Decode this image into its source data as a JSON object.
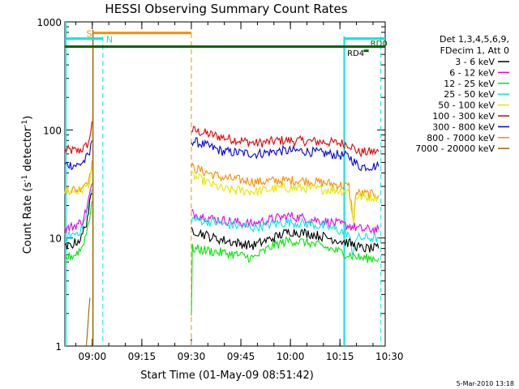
{
  "chart_data": {
    "type": "line",
    "title": "HESSI Observing Summary Count Rates",
    "xlabel": "Start Time (01-May-09 08:51:42)",
    "ylabel_main": "Count Rate (s",
    "ylabel_sup1": "-1",
    "ylabel_mid": " detector",
    "ylabel_sup2": "-1",
    "ylabel_end": ")",
    "y_scale": "log",
    "ylim": [
      1,
      1000
    ],
    "xlim_minutes": [
      0,
      97
    ],
    "x_ticks": [
      {
        "label": "09:00",
        "minute": 8.3
      },
      {
        "label": "09:15",
        "minute": 23.3
      },
      {
        "label": "09:30",
        "minute": 38.3
      },
      {
        "label": "09:45",
        "minute": 53.3
      },
      {
        "label": "10:00",
        "minute": 68.3
      },
      {
        "label": "10:15",
        "minute": 83.3
      },
      {
        "label": "10:30",
        "minute": 98.3
      }
    ],
    "y_ticks": [
      {
        "label": "1",
        "value": 1
      },
      {
        "label": "10",
        "value": 10
      },
      {
        "label": "100",
        "value": 100
      },
      {
        "label": "1000",
        "value": 1000
      }
    ],
    "legend": {
      "header1": "Det 1,3,4,5,6,9,",
      "header2": "FDecim 1, Att 0",
      "entries": [
        {
          "name": "3 - 6 keV",
          "color": "#000000"
        },
        {
          "name": "6 - 12 keV",
          "color": "#e600e6"
        },
        {
          "name": "12 - 25 keV",
          "color": "#00e600"
        },
        {
          "name": "25 - 50 keV",
          "color": "#00e6e6"
        },
        {
          "name": "50 - 100 keV",
          "color": "#e6e600"
        },
        {
          "name": "100 - 300 keV",
          "color": "#e60000"
        },
        {
          "name": "300 - 800 keV",
          "color": "#0000e6"
        },
        {
          "name": "800 - 7000 keV",
          "color": "#ff8c00"
        },
        {
          "name": "7000 - 20000 keV",
          "color": "#996600"
        }
      ]
    },
    "series": [
      {
        "name": "100 - 300 keV",
        "color": "#e60000",
        "segments": [
          [
            [
              0,
              65
            ],
            [
              4,
              64
            ],
            [
              6,
              68
            ],
            [
              7.5,
              80
            ],
            [
              8.2,
              120
            ]
          ],
          [
            [
              38.3,
              100
            ],
            [
              48,
              85
            ],
            [
              58,
              75
            ],
            [
              65,
              80
            ],
            [
              72,
              79
            ],
            [
              80,
              77
            ],
            [
              86,
              74
            ],
            [
              89,
              62
            ],
            [
              95,
              63
            ]
          ]
        ]
      },
      {
        "name": "300 - 800 keV",
        "color": "#0000e6",
        "segments": [
          [
            [
              0,
              48
            ],
            [
              4,
              47
            ],
            [
              6,
              52
            ],
            [
              7.5,
              60
            ],
            [
              8.2,
              80
            ]
          ],
          [
            [
              38.3,
              80
            ],
            [
              48,
              63
            ],
            [
              58,
              60
            ],
            [
              65,
              64
            ],
            [
              72,
              64
            ],
            [
              80,
              60
            ],
            [
              86,
              57
            ],
            [
              89,
              46
            ],
            [
              95,
              46
            ]
          ]
        ]
      },
      {
        "name": "800 - 7000 keV",
        "color": "#ff8c00",
        "segments": [
          [
            [
              0,
              28
            ],
            [
              4,
              28
            ],
            [
              6,
              32
            ],
            [
              7.5,
              36
            ],
            [
              8.2,
              52
            ]
          ],
          [
            [
              38.3,
              45
            ],
            [
              48,
              36
            ],
            [
              58,
              33
            ],
            [
              65,
              34
            ],
            [
              72,
              34
            ],
            [
              80,
              32
            ],
            [
              86,
              30
            ],
            [
              87.5,
              14
            ],
            [
              88,
              26
            ],
            [
              95,
              25
            ]
          ]
        ]
      },
      {
        "name": "50 - 100 keV",
        "color": "#e6e600",
        "segments": [
          [
            [
              0,
              27
            ],
            [
              4,
              27
            ],
            [
              6,
              29
            ],
            [
              7.5,
              33
            ],
            [
              8.2,
              45
            ]
          ],
          [
            [
              38.3,
              38
            ],
            [
              48,
              28
            ],
            [
              58,
              27
            ],
            [
              65,
              29
            ],
            [
              72,
              29
            ],
            [
              80,
              28
            ],
            [
              86,
              27
            ],
            [
              87.5,
              13
            ],
            [
              88,
              24
            ],
            [
              95,
              24
            ]
          ]
        ]
      },
      {
        "name": "6 - 12 keV",
        "color": "#e600e6",
        "segments": [
          [
            [
              0,
              12
            ],
            [
              3,
              13
            ],
            [
              5,
              14
            ],
            [
              6.5,
              18
            ],
            [
              7.5,
              25
            ],
            [
              8.2,
              32
            ]
          ],
          [
            [
              38.3,
              17
            ],
            [
              45,
              15
            ],
            [
              52,
              14
            ],
            [
              57,
              13.5
            ],
            [
              63,
              15
            ],
            [
              68,
              16
            ],
            [
              74,
              15
            ],
            [
              80,
              14
            ],
            [
              86,
              13
            ],
            [
              90,
              12
            ],
            [
              95,
              12
            ]
          ]
        ]
      },
      {
        "name": "25 - 50 keV",
        "color": "#00e6e6",
        "segments": [
          [
            [
              0,
              10
            ],
            [
              3,
              11
            ],
            [
              5,
              12
            ],
            [
              6.5,
              16
            ],
            [
              7.5,
              22
            ],
            [
              8.2,
              28
            ]
          ],
          [
            [
              38.3,
              15
            ],
            [
              45,
              14
            ],
            [
              52,
              13
            ],
            [
              57,
              12.5
            ],
            [
              63,
              13.5
            ],
            [
              68,
              14
            ],
            [
              74,
              13.5
            ],
            [
              80,
              12.5
            ],
            [
              86,
              11
            ],
            [
              87,
              7
            ],
            [
              88,
              10
            ],
            [
              95,
              10
            ]
          ]
        ]
      },
      {
        "name": "3 - 6 keV",
        "color": "#000000",
        "segments": [
          [
            [
              0,
              8
            ],
            [
              3,
              9
            ],
            [
              5,
              10
            ],
            [
              6.5,
              14
            ],
            [
              7.5,
              20
            ],
            [
              8.2,
              26
            ]
          ],
          [
            [
              38.3,
              12
            ],
            [
              45,
              10
            ],
            [
              52,
              9
            ],
            [
              57,
              8.5
            ],
            [
              63,
              10
            ],
            [
              68,
              11.5
            ],
            [
              74,
              11
            ],
            [
              80,
              10
            ],
            [
              86,
              9
            ],
            [
              90,
              8
            ],
            [
              95,
              8
            ]
          ]
        ]
      },
      {
        "name": "12 - 25 keV",
        "color": "#00e600",
        "segments": [
          [
            [
              0,
              6.5
            ],
            [
              3,
              7
            ],
            [
              5,
              8
            ],
            [
              6.5,
              11
            ],
            [
              7.5,
              16
            ],
            [
              8.2,
              22
            ]
          ],
          [
            [
              38.3,
              2
            ],
            [
              38.6,
              8
            ],
            [
              45,
              7.5
            ],
            [
              52,
              7
            ],
            [
              57,
              6.5
            ],
            [
              63,
              8.5
            ],
            [
              68,
              9.5
            ],
            [
              74,
              9
            ],
            [
              80,
              8
            ],
            [
              86,
              7
            ],
            [
              90,
              6.5
            ],
            [
              95,
              6.5
            ]
          ]
        ]
      },
      {
        "name": "7000 - 20000 keV",
        "color": "#996600",
        "segments": [
          [
            [
              6.5,
              1
            ],
            [
              7,
              1.6
            ],
            [
              7.3,
              2.2
            ],
            [
              7.6,
              2.8
            ]
          ]
        ]
      }
    ],
    "markers": {
      "attenuator_label": "S",
      "night_label": "N",
      "rd0_label": "RD0",
      "rd4_label": "RD4"
    },
    "footer_date": "5-Mar-2010 13:18"
  }
}
